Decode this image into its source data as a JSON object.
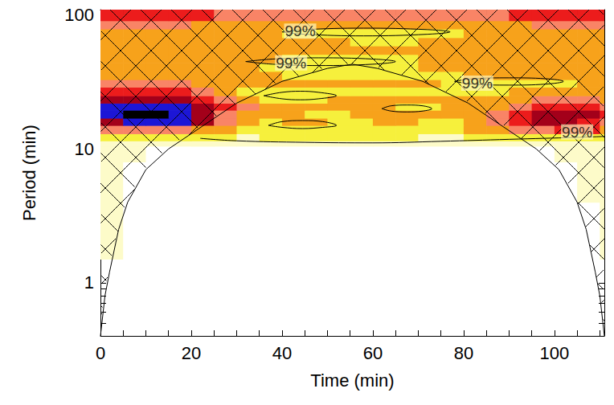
{
  "chart_data": {
    "type": "wavelet",
    "x_label": "Time (min)",
    "y_label": "Period (min)",
    "log": "y",
    "xlim": [
      0,
      111
    ],
    "xticks": [
      0,
      20,
      40,
      60,
      80,
      100
    ],
    "xminor_ticks": [
      5,
      10,
      15,
      25,
      30,
      35,
      45,
      50,
      55,
      65,
      70,
      75,
      85,
      90,
      95,
      105,
      110
    ],
    "ylim": [
      0.4,
      110
    ],
    "yticks": [
      1,
      10,
      100
    ],
    "yminor_ticks": [
      0.5,
      0.6,
      0.7,
      0.8,
      0.9,
      2,
      3,
      4,
      5,
      6,
      7,
      8,
      9,
      20,
      30,
      40,
      50,
      60,
      70,
      80,
      90
    ],
    "time_edges": [
      0,
      5,
      10,
      15,
      20,
      25,
      30,
      35,
      40,
      45,
      50,
      55,
      60,
      65,
      70,
      75,
      80,
      85,
      90,
      95,
      100,
      105,
      110,
      111
    ],
    "period_edges": [
      1.5,
      4,
      8,
      10.5,
      11.5,
      13,
      15,
      17,
      19.5,
      22,
      25,
      29,
      33,
      38,
      44,
      51,
      59,
      68,
      79,
      91,
      110
    ],
    "level_colors": [
      "#ffffff",
      "#fdfbc9",
      "#f6f03c",
      "#f7a21b",
      "#f98466",
      "#ec1c1c",
      "#a3001a",
      "#1c16d6",
      "#000000"
    ],
    "power": [
      [
        1,
        0,
        0,
        0,
        0,
        0,
        0,
        0,
        0,
        0,
        0,
        0,
        0,
        0,
        0,
        0,
        0,
        0,
        0,
        0,
        0,
        0,
        1
      ],
      [
        1,
        0,
        0,
        0,
        0,
        0,
        0,
        0,
        0,
        0,
        0,
        0,
        0,
        0,
        0,
        0,
        0,
        0,
        0,
        0,
        0,
        1,
        1
      ],
      [
        1,
        1,
        0,
        0,
        0,
        0,
        0,
        0,
        0,
        0,
        0,
        0,
        0,
        0,
        0,
        0,
        0,
        0,
        0,
        0,
        1,
        1,
        1
      ],
      [
        1,
        1,
        1,
        1,
        1,
        1,
        1,
        1,
        1,
        1,
        1,
        1,
        1,
        1,
        1,
        1,
        1,
        1,
        1,
        1,
        1,
        1,
        1
      ],
      [
        2,
        2,
        2,
        2,
        2,
        2,
        1,
        2,
        2,
        2,
        2,
        2,
        2,
        2,
        1,
        1,
        2,
        2,
        2,
        2,
        2,
        2,
        2
      ],
      [
        4,
        4,
        4,
        4,
        3,
        3,
        2,
        2,
        2,
        2,
        2,
        2,
        2,
        2,
        2,
        2,
        3,
        3,
        4,
        4,
        5,
        5,
        3
      ],
      [
        6,
        7,
        7,
        7,
        6,
        4,
        3,
        2,
        3,
        3,
        2,
        2,
        3,
        3,
        2,
        2,
        3,
        4,
        5,
        6,
        6,
        5,
        4
      ],
      [
        7,
        8,
        8,
        7,
        6,
        4,
        3,
        3,
        3,
        2,
        2,
        3,
        3,
        3,
        3,
        3,
        3,
        4,
        5,
        6,
        6,
        6,
        5
      ],
      [
        7,
        7,
        7,
        7,
        6,
        5,
        4,
        3,
        3,
        3,
        3,
        3,
        3,
        2,
        2,
        3,
        3,
        3,
        4,
        5,
        5,
        5,
        4
      ],
      [
        6,
        6,
        6,
        6,
        5,
        4,
        3,
        2,
        2,
        2,
        3,
        3,
        3,
        3,
        3,
        3,
        3,
        3,
        3,
        4,
        4,
        4,
        3
      ],
      [
        5,
        5,
        5,
        5,
        4,
        3,
        2,
        2,
        2,
        2,
        2,
        2,
        2,
        2,
        2,
        2,
        2,
        2,
        3,
        3,
        3,
        3,
        3
      ],
      [
        4,
        4,
        4,
        4,
        3,
        3,
        3,
        3,
        3,
        3,
        3,
        3,
        3,
        3,
        3,
        2,
        2,
        2,
        2,
        2,
        2,
        3,
        3
      ],
      [
        3,
        3,
        3,
        3,
        3,
        3,
        3,
        3,
        2,
        2,
        2,
        2,
        2,
        2,
        2,
        2,
        3,
        3,
        3,
        3,
        3,
        3,
        3
      ],
      [
        3,
        3,
        3,
        3,
        3,
        3,
        3,
        2,
        2,
        2,
        2,
        2,
        2,
        2,
        3,
        3,
        3,
        3,
        3,
        3,
        3,
        3,
        3
      ],
      [
        3,
        3,
        3,
        3,
        3,
        3,
        3,
        3,
        2,
        2,
        2,
        2,
        2,
        2,
        3,
        3,
        3,
        3,
        3,
        3,
        3,
        3,
        3
      ],
      [
        3,
        3,
        3,
        3,
        3,
        3,
        3,
        3,
        3,
        3,
        3,
        3,
        3,
        3,
        3,
        3,
        3,
        3,
        3,
        3,
        3,
        3,
        3
      ],
      [
        3,
        3,
        3,
        3,
        3,
        3,
        3,
        3,
        3,
        3,
        3,
        2,
        2,
        2,
        3,
        3,
        3,
        3,
        3,
        3,
        3,
        3,
        3
      ],
      [
        3,
        3,
        3,
        3,
        3,
        3,
        3,
        3,
        2,
        2,
        2,
        2,
        2,
        2,
        2,
        2,
        3,
        3,
        3,
        3,
        3,
        3,
        3
      ],
      [
        4,
        4,
        4,
        4,
        3,
        3,
        3,
        3,
        3,
        3,
        3,
        3,
        3,
        3,
        3,
        3,
        3,
        3,
        3,
        4,
        4,
        4,
        4
      ],
      [
        5,
        5,
        5,
        5,
        5,
        4,
        4,
        4,
        4,
        4,
        4,
        4,
        4,
        4,
        4,
        4,
        4,
        4,
        5,
        5,
        5,
        5,
        5
      ]
    ],
    "cone_of_influence": [
      [
        0,
        0.4
      ],
      [
        1,
        0.8
      ],
      [
        2,
        1.2
      ],
      [
        4,
        2.5
      ],
      [
        6,
        4
      ],
      [
        10,
        7
      ],
      [
        15,
        10
      ],
      [
        20,
        13
      ],
      [
        30,
        22
      ],
      [
        40,
        32
      ],
      [
        50,
        40
      ],
      [
        55.5,
        43
      ],
      [
        61,
        40
      ],
      [
        71,
        32
      ],
      [
        81,
        22
      ],
      [
        91,
        13
      ],
      [
        96,
        10
      ],
      [
        101,
        7
      ],
      [
        105,
        4
      ],
      [
        107,
        2.5
      ],
      [
        109,
        1.2
      ],
      [
        110,
        0.8
      ],
      [
        111,
        0.4
      ]
    ],
    "contours": [
      [
        [
          40,
          75
        ],
        [
          45,
          78
        ],
        [
          58,
          80
        ],
        [
          72,
          78
        ],
        [
          77,
          75
        ],
        [
          72,
          72
        ],
        [
          58,
          70
        ],
        [
          45,
          72
        ],
        [
          40,
          75
        ]
      ],
      [
        [
          32,
          45
        ],
        [
          38,
          47
        ],
        [
          48,
          48
        ],
        [
          60,
          47
        ],
        [
          65,
          45
        ],
        [
          60,
          43
        ],
        [
          48,
          42
        ],
        [
          38,
          43
        ],
        [
          32,
          45
        ]
      ],
      [
        [
          78,
          32
        ],
        [
          82,
          33.5
        ],
        [
          90,
          34
        ],
        [
          98,
          33.5
        ],
        [
          102,
          32
        ],
        [
          98,
          30.5
        ],
        [
          90,
          30
        ],
        [
          82,
          30.5
        ],
        [
          78,
          32
        ]
      ],
      [
        [
          36,
          25
        ],
        [
          40,
          26.5
        ],
        [
          44,
          27
        ],
        [
          48,
          26.5
        ],
        [
          52,
          25
        ],
        [
          48,
          23.7
        ],
        [
          44,
          23.3
        ],
        [
          40,
          23.7
        ],
        [
          36,
          25
        ]
      ],
      [
        [
          62,
          20
        ],
        [
          64,
          21
        ],
        [
          67.5,
          21.3
        ],
        [
          71,
          21
        ],
        [
          73,
          20
        ],
        [
          71,
          19.2
        ],
        [
          67.5,
          18.9
        ],
        [
          64,
          19.2
        ],
        [
          62,
          20
        ]
      ],
      [
        [
          37,
          15
        ],
        [
          40,
          16
        ],
        [
          44.5,
          16.3
        ],
        [
          49,
          16
        ],
        [
          52,
          15
        ],
        [
          49,
          14.5
        ],
        [
          44.5,
          14.2
        ],
        [
          40,
          14.5
        ],
        [
          37,
          15
        ]
      ],
      [
        [
          22,
          12
        ],
        [
          30,
          11.5
        ],
        [
          45,
          11.2
        ],
        [
          60,
          11.1
        ],
        [
          75,
          11.4
        ],
        [
          90,
          11.8
        ],
        [
          105,
          12.2
        ],
        [
          111,
          12.4
        ]
      ]
    ],
    "contour_labels": [
      {
        "text": "99%",
        "x": 44,
        "y": 76
      },
      {
        "text": "99%",
        "x": 42,
        "y": 44
      },
      {
        "text": "99%",
        "x": 83,
        "y": 31
      },
      {
        "text": "99%",
        "x": 105,
        "y": 13.4
      }
    ]
  }
}
